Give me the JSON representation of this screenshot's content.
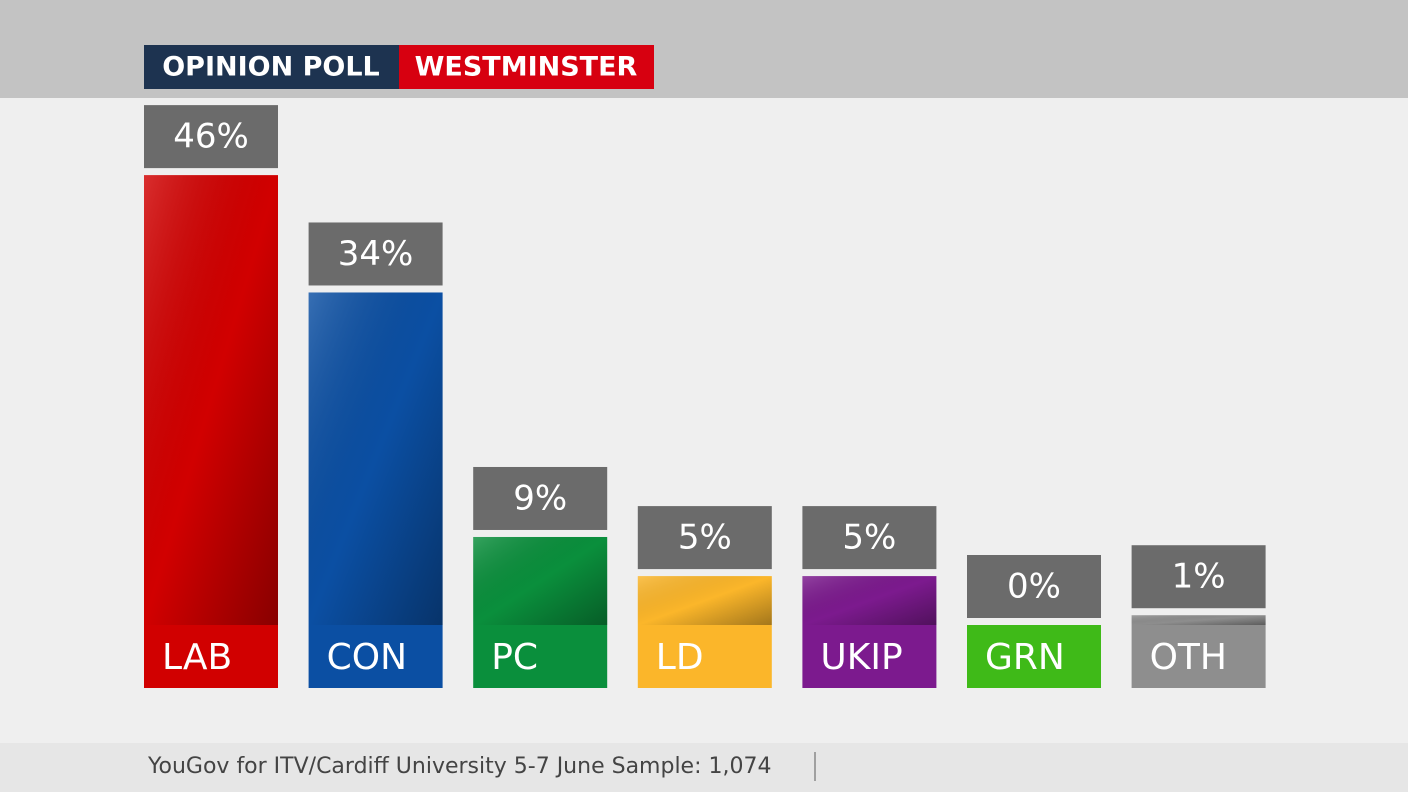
{
  "chart_data": {
    "type": "bar",
    "title": "OPINION POLL",
    "subtitle": "WESTMINSTER",
    "categories": [
      "LAB",
      "CON",
      "PC",
      "LD",
      "UKIP",
      "GRN",
      "OTH"
    ],
    "values": [
      46,
      34,
      9,
      5,
      5,
      0,
      1
    ],
    "value_labels": [
      "46%",
      "34%",
      "9%",
      "5%",
      "5%",
      "0%",
      "1%"
    ],
    "colors": [
      "#d10000",
      "#0b4fa3",
      "#0a8f3c",
      "#fbb62a",
      "#7c1a8e",
      "#3fba18",
      "#8e8e8e"
    ],
    "source": "YouGov for ITV/Cardiff University 5-7 June Sample: 1,074"
  }
}
